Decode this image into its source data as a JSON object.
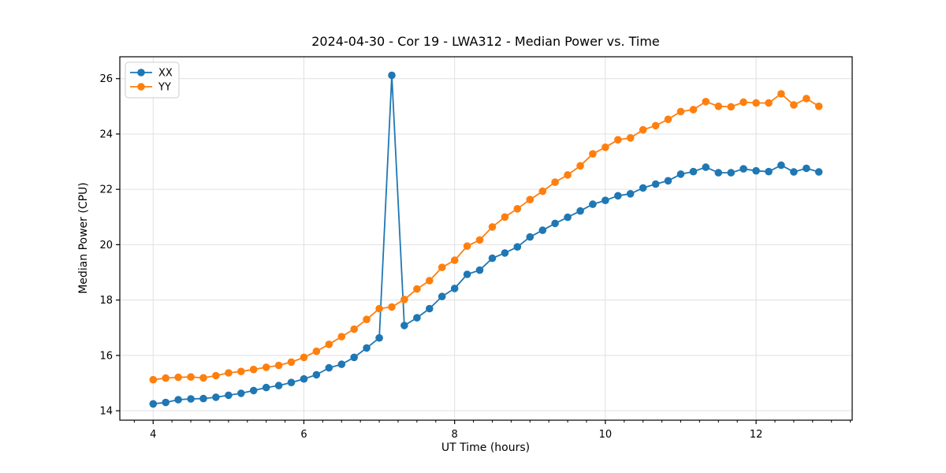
{
  "chart_data": {
    "type": "line",
    "title": "2024-04-30 - Cor 19 - LWA312 - Median Power vs. Time",
    "xlabel": "UT Time (hours)",
    "ylabel": "Median Power (CPU)",
    "xlim": [
      3.558,
      13.275
    ],
    "ylim": [
      13.66,
      26.79
    ],
    "xticks": [
      4,
      6,
      8,
      10,
      12
    ],
    "yticks": [
      14,
      16,
      18,
      20,
      22,
      24,
      26
    ],
    "x_minor_step": 0.25,
    "grid": true,
    "grid_color": "#e0e0e0",
    "legend_position": "upper-left",
    "marker": "circle",
    "x": [
      4.0,
      4.167,
      4.333,
      4.5,
      4.667,
      4.833,
      5.0,
      5.167,
      5.333,
      5.5,
      5.667,
      5.833,
      6.0,
      6.167,
      6.333,
      6.5,
      6.667,
      6.833,
      7.0,
      7.167,
      7.333,
      7.5,
      7.667,
      7.833,
      8.0,
      8.167,
      8.333,
      8.5,
      8.667,
      8.833,
      9.0,
      9.167,
      9.333,
      9.5,
      9.667,
      9.833,
      10.0,
      10.167,
      10.333,
      10.5,
      10.667,
      10.833,
      11.0,
      11.167,
      11.333,
      11.5,
      11.667,
      11.833,
      12.0,
      12.167,
      12.333,
      12.5,
      12.667,
      12.833
    ],
    "series": [
      {
        "name": "XX",
        "color": "#1f77b4",
        "values": [
          14.25,
          14.3,
          14.4,
          14.43,
          14.44,
          14.49,
          14.56,
          14.63,
          14.73,
          14.84,
          14.91,
          15.02,
          15.15,
          15.3,
          15.55,
          15.68,
          15.93,
          16.27,
          16.63,
          26.12,
          17.08,
          17.36,
          17.69,
          18.13,
          18.42,
          18.93,
          19.08,
          19.51,
          19.7,
          19.92,
          20.28,
          20.52,
          20.77,
          20.99,
          21.22,
          21.46,
          21.6,
          21.77,
          21.84,
          22.05,
          22.19,
          22.31,
          22.55,
          22.64,
          22.8,
          22.6,
          22.6,
          22.74,
          22.67,
          22.64,
          22.87,
          22.63,
          22.76,
          22.63
        ]
      },
      {
        "name": "YY",
        "color": "#ff7f0e",
        "values": [
          15.12,
          15.18,
          15.21,
          15.22,
          15.19,
          15.27,
          15.37,
          15.42,
          15.49,
          15.57,
          15.64,
          15.76,
          15.93,
          16.15,
          16.4,
          16.68,
          16.95,
          17.3,
          17.69,
          17.75,
          18.02,
          18.4,
          18.7,
          19.18,
          19.44,
          19.95,
          20.17,
          20.64,
          21.0,
          21.3,
          21.63,
          21.93,
          22.26,
          22.52,
          22.85,
          23.28,
          23.52,
          23.79,
          23.86,
          24.15,
          24.3,
          24.53,
          24.81,
          24.88,
          25.17,
          25.0,
          24.98,
          25.15,
          25.12,
          25.12,
          25.45,
          25.05,
          25.28,
          25.0
        ]
      }
    ]
  }
}
